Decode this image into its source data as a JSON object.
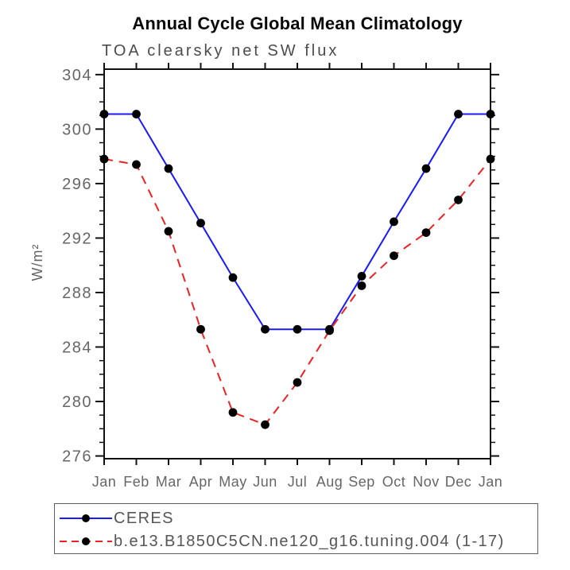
{
  "title": "Annual Cycle Global Mean Climatology",
  "subtitle": "TOA clearsky net SW flux",
  "chart_data": {
    "type": "line",
    "title": "Annual Cycle Global Mean Climatology",
    "subtitle": "TOA clearsky net SW flux",
    "ylabel": "W/m²",
    "xlabel": "",
    "x_categories": [
      "Jan",
      "Feb",
      "Mar",
      "Apr",
      "May",
      "Jun",
      "Jul",
      "Aug",
      "Sep",
      "Oct",
      "Nov",
      "Dec",
      "Jan"
    ],
    "ylim": [
      275.8,
      304.4
    ],
    "yticks_major": [
      276,
      280,
      284,
      288,
      292,
      296,
      300,
      304
    ],
    "ytick_minor_step": 1,
    "grid": false,
    "legend_position": "bottom",
    "frame_color": "#111111",
    "tick_label_color": "#666666",
    "series": [
      {
        "name": "CERES",
        "color": "#1a1aff",
        "line_style": "solid",
        "marker": "filled-circle",
        "marker_color": "#000000",
        "values": [
          301.1,
          301.1,
          297.1,
          293.1,
          289.1,
          285.3,
          285.3,
          285.3,
          289.2,
          293.2,
          297.1,
          301.1,
          301.1
        ]
      },
      {
        "name": "b.e13.B1850C5CN.ne120_g16.tuning.004 (1-17)",
        "color": "#ee2222",
        "line_style": "dashed",
        "marker": "filled-circle",
        "marker_color": "#000000",
        "values": [
          297.8,
          297.4,
          292.5,
          285.3,
          279.2,
          278.3,
          281.4,
          285.2,
          288.5,
          290.7,
          292.4,
          294.8,
          297.8
        ]
      }
    ]
  }
}
